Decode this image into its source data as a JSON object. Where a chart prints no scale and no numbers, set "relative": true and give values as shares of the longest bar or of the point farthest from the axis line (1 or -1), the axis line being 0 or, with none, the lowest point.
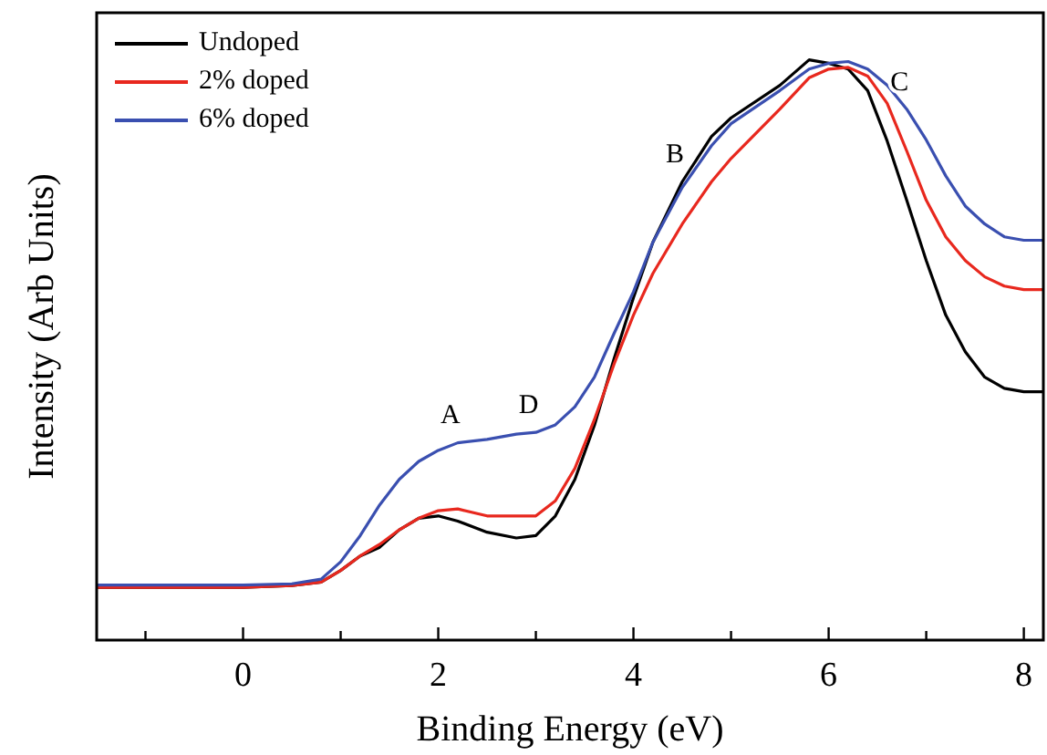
{
  "chart_data": {
    "type": "line",
    "relative": true,
    "xlabel": "Binding Energy (eV)",
    "ylabel": "Intensity (Arb Units)",
    "xlim": [
      -1.5,
      8.2
    ],
    "xticks": [
      {
        "value": -1,
        "label": null
      },
      0,
      {
        "value": 1,
        "label": null
      },
      2,
      {
        "value": 3,
        "label": null
      },
      4,
      {
        "value": 5,
        "label": null
      },
      6,
      {
        "value": 7,
        "label": null
      },
      8
    ],
    "x": [
      -1.5,
      0,
      0.5,
      0.8,
      1.0,
      1.2,
      1.4,
      1.6,
      1.8,
      2.0,
      2.2,
      2.5,
      2.8,
      3.0,
      3.2,
      3.4,
      3.6,
      3.8,
      4.0,
      4.2,
      4.5,
      4.8,
      5.0,
      5.5,
      5.8,
      6.0,
      6.2,
      6.4,
      6.6,
      6.8,
      7.0,
      7.2,
      7.4,
      7.6,
      7.8,
      8.0,
      8.2
    ],
    "series": [
      {
        "name": "Undoped",
        "color": "#000000",
        "values": [
          0.091,
          0.091,
          0.094,
          0.1,
          0.12,
          0.145,
          0.16,
          0.19,
          0.21,
          0.214,
          0.205,
          0.186,
          0.176,
          0.18,
          0.214,
          0.277,
          0.37,
          0.484,
          0.59,
          0.686,
          0.79,
          0.868,
          0.9,
          0.956,
          1.0,
          0.994,
          0.984,
          0.947,
          0.86,
          0.758,
          0.654,
          0.56,
          0.497,
          0.453,
          0.434,
          0.428,
          0.428
        ]
      },
      {
        "name": "2% doped",
        "color": "#e8281e",
        "values": [
          0.091,
          0.091,
          0.094,
          0.1,
          0.12,
          0.145,
          0.165,
          0.19,
          0.21,
          0.223,
          0.226,
          0.214,
          0.214,
          0.214,
          0.24,
          0.296,
          0.38,
          0.475,
          0.56,
          0.632,
          0.717,
          0.79,
          0.83,
          0.915,
          0.969,
          0.984,
          0.987,
          0.972,
          0.925,
          0.843,
          0.758,
          0.695,
          0.654,
          0.626,
          0.61,
          0.604,
          0.604
        ]
      },
      {
        "name": "6% doped",
        "color": "#3a4fb0",
        "values": [
          0.095,
          0.095,
          0.097,
          0.105,
          0.135,
          0.18,
          0.233,
          0.277,
          0.308,
          0.327,
          0.34,
          0.346,
          0.355,
          0.358,
          0.371,
          0.402,
          0.453,
          0.528,
          0.6,
          0.686,
          0.78,
          0.852,
          0.89,
          0.947,
          0.984,
          0.994,
          0.997,
          0.984,
          0.956,
          0.915,
          0.862,
          0.8,
          0.748,
          0.717,
          0.695,
          0.689,
          0.689
        ]
      }
    ],
    "annotations": [
      {
        "text": "A",
        "x": 2.2,
        "y": 0.34
      },
      {
        "text": "D",
        "x": 3.0,
        "y": 0.358
      },
      {
        "text": "B",
        "x": 4.5,
        "y": 0.79
      },
      {
        "text": "C",
        "x": 6.8,
        "y": 0.915
      }
    ],
    "legend": "top left",
    "grid": false
  }
}
